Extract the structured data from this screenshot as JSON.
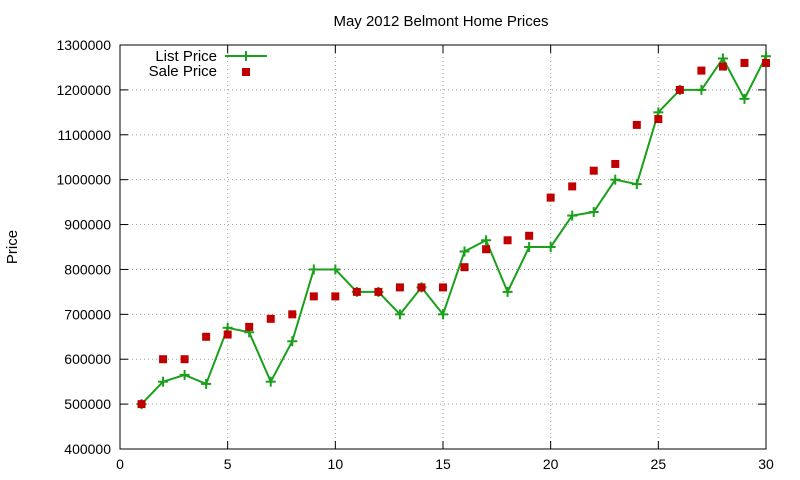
{
  "chart_data": {
    "type": "line",
    "title": "May 2012 Belmont Home Prices",
    "xlabel": "",
    "ylabel": "Price",
    "xlim": [
      0,
      30
    ],
    "ylim": [
      400000,
      1300000
    ],
    "xticks": [
      0,
      5,
      10,
      15,
      20,
      25,
      30
    ],
    "yticks": [
      400000,
      500000,
      600000,
      700000,
      800000,
      900000,
      1000000,
      1100000,
      1200000,
      1300000
    ],
    "grid": true,
    "legend_position": "top-left",
    "series": [
      {
        "name": "List Price",
        "style": "line-plus",
        "color": "#1aa01a",
        "x": [
          1,
          2,
          3,
          4,
          5,
          6,
          7,
          8,
          9,
          10,
          11,
          12,
          13,
          14,
          15,
          16,
          17,
          18,
          19,
          20,
          21,
          22,
          23,
          24,
          25,
          26,
          27,
          28,
          29,
          30
        ],
        "y": [
          500000,
          550000,
          565000,
          545000,
          670000,
          660000,
          550000,
          640000,
          800000,
          800000,
          750000,
          750000,
          700000,
          760000,
          700000,
          840000,
          865000,
          750000,
          850000,
          850000,
          920000,
          928000,
          1000000,
          990000,
          1150000,
          1200000,
          1200000,
          1270000,
          1180000,
          1275000
        ]
      },
      {
        "name": "Sale Price",
        "style": "square-points",
        "color": "#c00000",
        "x": [
          1,
          2,
          3,
          4,
          5,
          6,
          7,
          8,
          9,
          10,
          11,
          12,
          13,
          14,
          15,
          16,
          17,
          18,
          19,
          20,
          21,
          22,
          23,
          24,
          25,
          26,
          27,
          28,
          29,
          30
        ],
        "y": [
          500000,
          600000,
          600000,
          650000,
          655000,
          672000,
          690000,
          700000,
          740000,
          740000,
          750000,
          750000,
          760000,
          760000,
          760000,
          805000,
          845000,
          865000,
          875000,
          960000,
          985000,
          1020000,
          1035000,
          1122000,
          1135000,
          1200000,
          1243000,
          1252000,
          1260000,
          1260000
        ]
      }
    ]
  }
}
